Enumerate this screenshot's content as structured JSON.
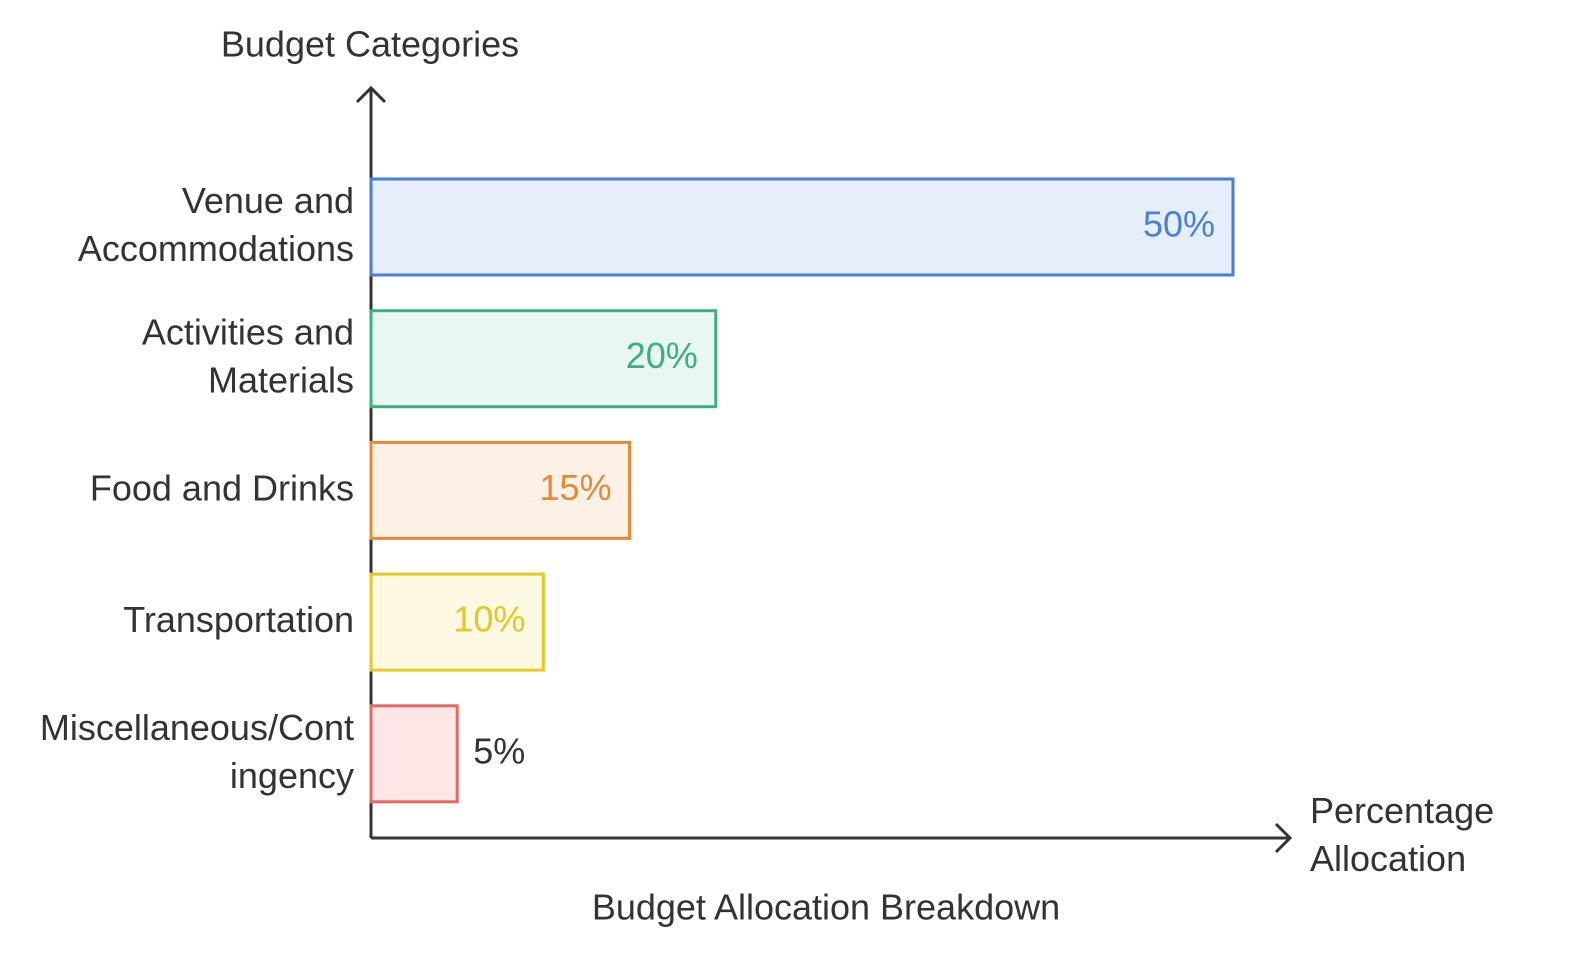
{
  "chart_data": {
    "type": "bar",
    "orientation": "horizontal",
    "title": "Budget Allocation Breakdown",
    "y_label": "Budget Categories",
    "x_label": "Percentage Allocation",
    "categories": [
      "Venue and Accommodations",
      "Activities and Materials",
      "Food and Drinks",
      "Transportation",
      "Miscellaneous/Contingency"
    ],
    "values": [
      50,
      20,
      15,
      10,
      5
    ],
    "value_labels": [
      "50%",
      "20%",
      "15%",
      "10%",
      "5%"
    ],
    "colors": [
      "#4a7fd9",
      "#3bb07f",
      "#e38a3a",
      "#e6c823",
      "#e26a63"
    ],
    "fills": [
      "#e6eefc",
      "#e8f7f1",
      "#fdf0e4",
      "#fdf9e3",
      "#fde6e6"
    ],
    "xlim": [
      0,
      50
    ]
  }
}
